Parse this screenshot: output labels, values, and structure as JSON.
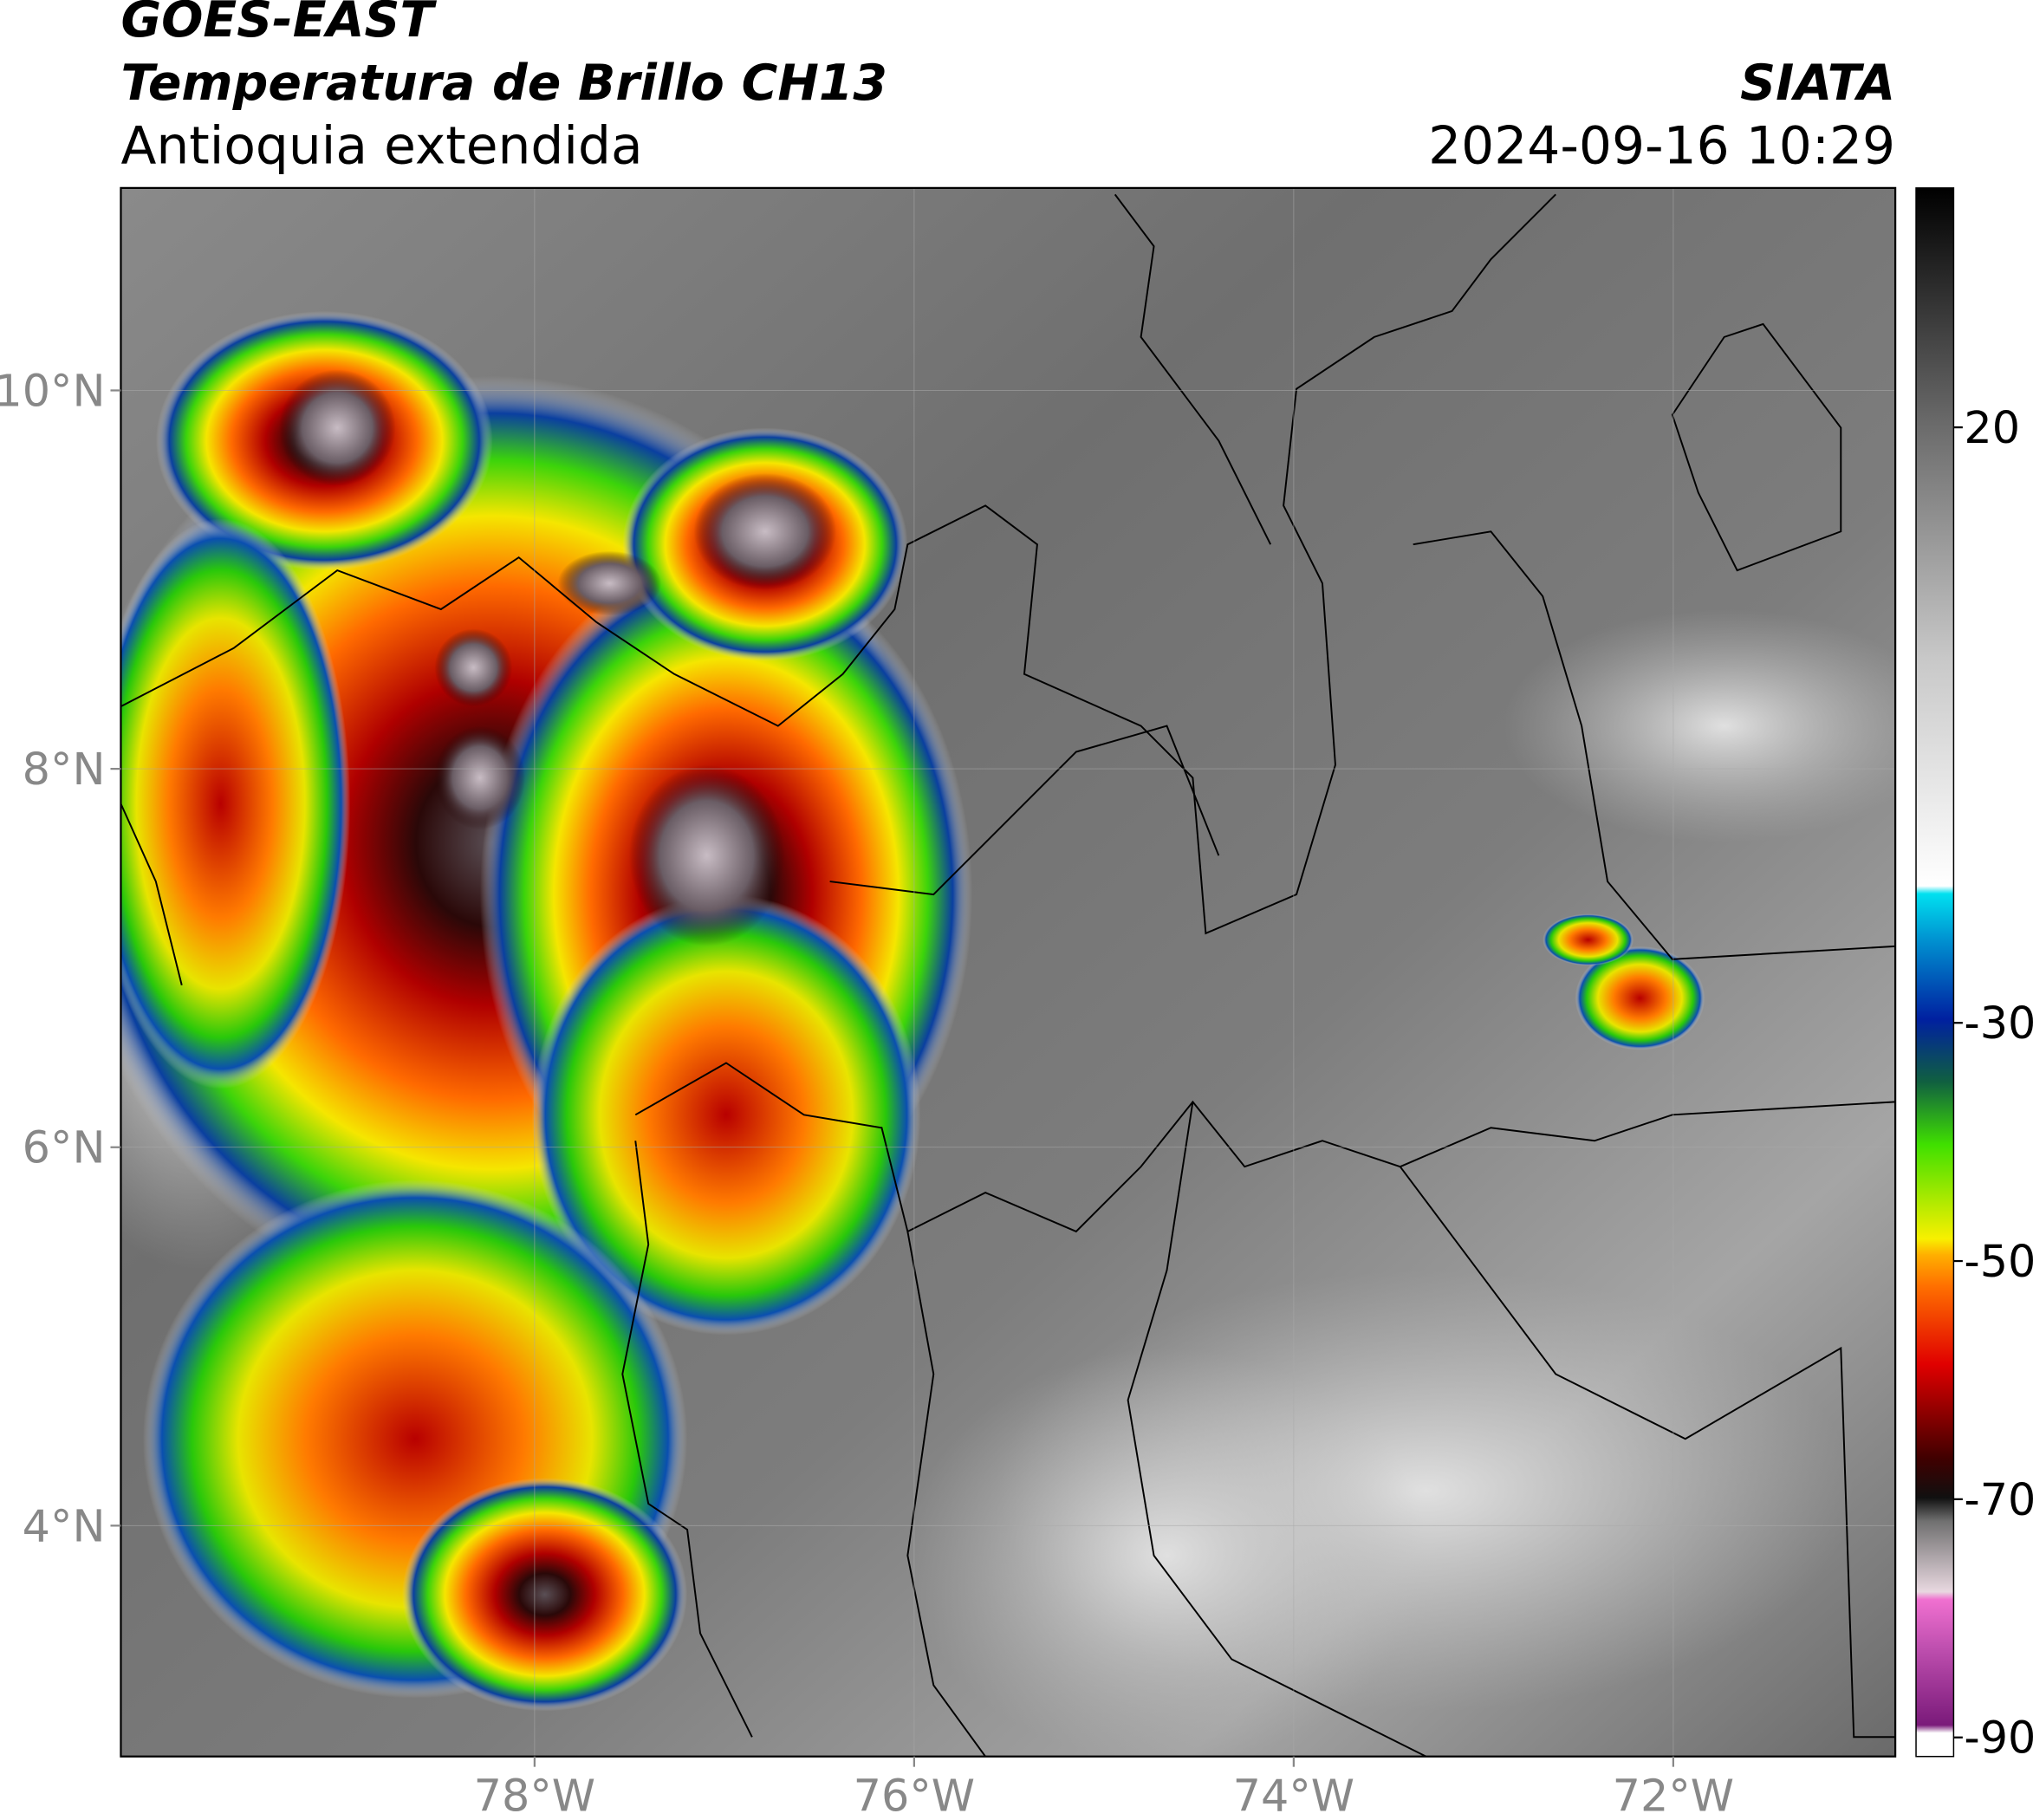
{
  "header": {
    "satellite": "GOES-EAST",
    "product": "Temperatura de Brillo CH13",
    "region": "Antioquia extendida",
    "agency": "SIATA",
    "datetime": "2024-09-16 10:29"
  },
  "map": {
    "xlim": [
      -80.18,
      -70.83
    ],
    "ylim": [
      2.78,
      11.07
    ],
    "xticks": [
      {
        "value": -78,
        "label": "78°W"
      },
      {
        "value": -76,
        "label": "76°W"
      },
      {
        "value": -74,
        "label": "74°W"
      },
      {
        "value": -72,
        "label": "72°W"
      }
    ],
    "yticks": [
      {
        "value": 10,
        "label": "10°N"
      },
      {
        "value": 8,
        "label": "8°N"
      },
      {
        "value": 6,
        "label": "6°N"
      },
      {
        "value": 4,
        "label": "4°N"
      }
    ],
    "grid": true
  },
  "colorbar": {
    "lim": [
      -91.6,
      40.1
    ],
    "ticks": [
      20,
      -30,
      -50,
      -70,
      -90
    ]
  }
}
